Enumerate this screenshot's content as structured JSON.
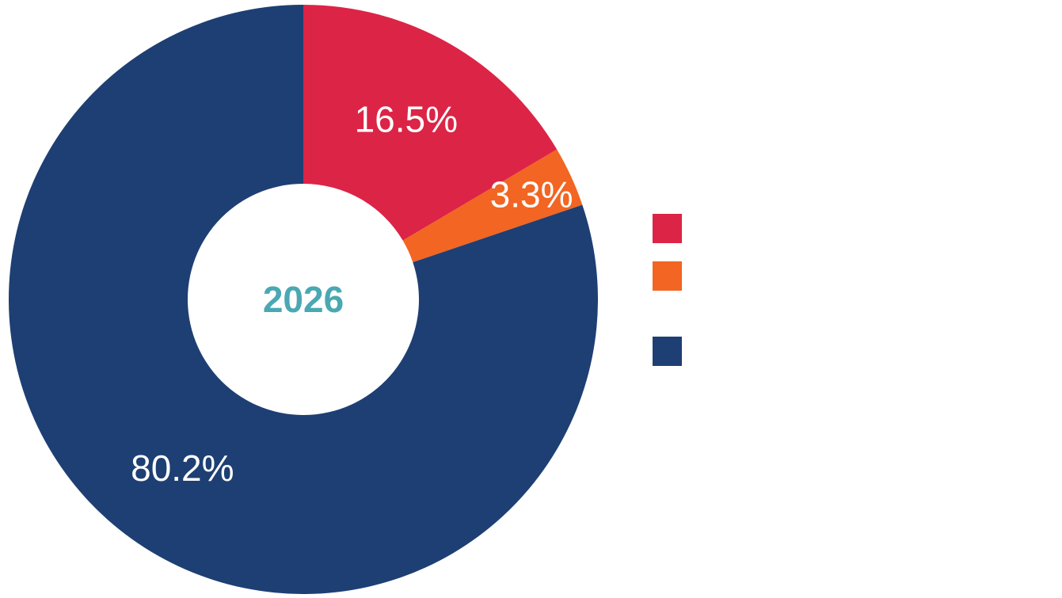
{
  "chart_data": {
    "type": "pie",
    "variant": "donut",
    "center_label": "2026",
    "center_label_color": "#4aa8b3",
    "categories": [
      "",
      "",
      ""
    ],
    "values": [
      16.5,
      3.3,
      80.2
    ],
    "value_labels": [
      "16.5%",
      "3.3%",
      "80.2%"
    ],
    "colors": [
      "#dc2446",
      "#f26522",
      "#1e3f73"
    ],
    "start_angle": "12 o'clock",
    "direction": "clockwise",
    "legend": {
      "placement": "right",
      "entries": [
        {
          "color": "#dc2446",
          "label": ""
        },
        {
          "color": "#f26522",
          "label": ""
        },
        {
          "color": "#1e3f73",
          "label": ""
        }
      ]
    },
    "title": "",
    "xlabel": "",
    "ylabel": ""
  }
}
